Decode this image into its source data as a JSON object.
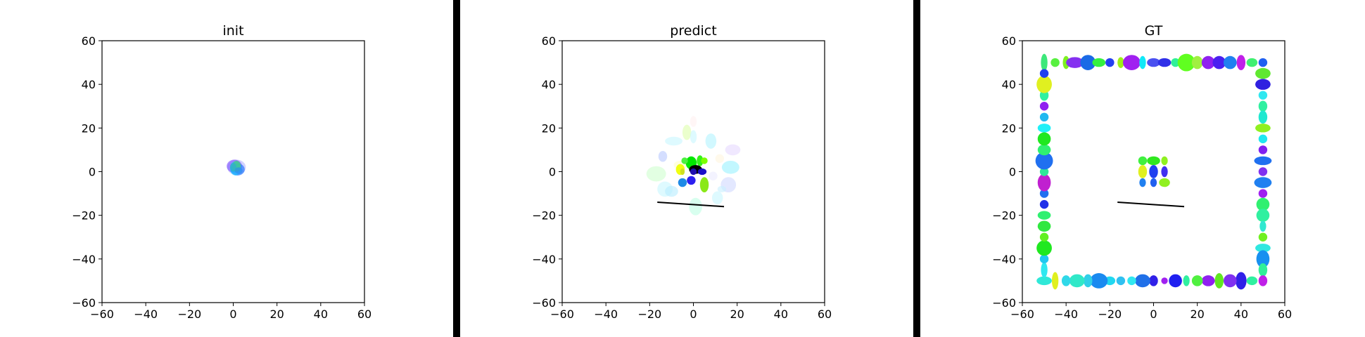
{
  "chart_data": [
    {
      "type": "scatter",
      "title": "init",
      "xlim": [
        -60,
        60
      ],
      "ylim": [
        -60,
        60
      ],
      "xticks": [
        -60,
        -40,
        -20,
        0,
        20,
        40,
        60
      ],
      "yticks": [
        -60,
        -40,
        -20,
        0,
        20,
        40,
        60
      ],
      "xtick_labels": [
        "−60",
        "−40",
        "−20",
        "0",
        "20",
        "40",
        "60"
      ],
      "ytick_labels": [
        "−60",
        "−40",
        "−20",
        "0",
        "20",
        "40",
        "60"
      ],
      "grid": false,
      "ellipses": [
        {
          "x": 1.5,
          "y": 2.0,
          "w": 8.5,
          "h": 7.0,
          "color": "#b4b4ff",
          "alpha": 0.6
        },
        {
          "x": 0.5,
          "y": 2.5,
          "w": 7.0,
          "h": 6.0,
          "color": "#7a4cff",
          "alpha": 0.6
        },
        {
          "x": 2.0,
          "y": 1.0,
          "w": 6.5,
          "h": 5.5,
          "color": "#2a7bff",
          "alpha": 0.7
        },
        {
          "x": 1.0,
          "y": 1.5,
          "w": 5.0,
          "h": 6.5,
          "color": "#12c7ff",
          "alpha": 0.6
        },
        {
          "x": 1.5,
          "y": 2.5,
          "w": 4.0,
          "h": 5.0,
          "color": "#46c987",
          "alpha": 0.8
        },
        {
          "x": 0.0,
          "y": 2.0,
          "w": 3.0,
          "h": 4.0,
          "color": "#2fb0c8",
          "alpha": 0.8
        },
        {
          "x": 2.5,
          "y": 0.5,
          "w": 3.5,
          "h": 3.0,
          "color": "#2d8df0",
          "alpha": 0.7
        }
      ],
      "lines": []
    },
    {
      "type": "scatter",
      "title": "predict",
      "xlim": [
        -60,
        60
      ],
      "ylim": [
        -60,
        60
      ],
      "xticks": [
        -60,
        -40,
        -20,
        0,
        20,
        40,
        60
      ],
      "yticks": [
        -60,
        -40,
        -20,
        0,
        20,
        40,
        60
      ],
      "xtick_labels": [
        "−60",
        "−40",
        "−20",
        "0",
        "20",
        "40",
        "60"
      ],
      "ytick_labels": [
        "−60",
        "−40",
        "−20",
        "0",
        "20",
        "40",
        "60"
      ],
      "grid": false,
      "ellipses": [
        {
          "x": 0,
          "y": 23,
          "w": 3,
          "h": 5,
          "color": "#ffe0e0",
          "alpha": 0.3
        },
        {
          "x": -3,
          "y": 18,
          "w": 4,
          "h": 7,
          "color": "#d8ff9c",
          "alpha": 0.5
        },
        {
          "x": 0,
          "y": 16,
          "w": 3,
          "h": 6,
          "color": "#c8f7ff",
          "alpha": 0.6
        },
        {
          "x": -9,
          "y": 14,
          "w": 8,
          "h": 4,
          "color": "#c8f7ff",
          "alpha": 0.6
        },
        {
          "x": 8,
          "y": 14,
          "w": 5,
          "h": 7,
          "color": "#b2f4ff",
          "alpha": 0.6
        },
        {
          "x": 18,
          "y": 10,
          "w": 7,
          "h": 5,
          "color": "#e6d8ff",
          "alpha": 0.6
        },
        {
          "x": -14,
          "y": 7,
          "w": 4,
          "h": 5,
          "color": "#b8c8ff",
          "alpha": 0.6
        },
        {
          "x": 12,
          "y": 6,
          "w": 4,
          "h": 4,
          "color": "#fff4d8",
          "alpha": 0.5
        },
        {
          "x": 17,
          "y": 2,
          "w": 8,
          "h": 6,
          "color": "#a8f4ff",
          "alpha": 0.7
        },
        {
          "x": -17,
          "y": -1,
          "w": 9,
          "h": 7,
          "color": "#d6ffd6",
          "alpha": 0.7
        },
        {
          "x": -6,
          "y": 3,
          "w": 6,
          "h": 4,
          "color": "#ffffc8",
          "alpha": 0.6
        },
        {
          "x": 9,
          "y": -2,
          "w": 4,
          "h": 4,
          "color": "#e8e8ff",
          "alpha": 0.5
        },
        {
          "x": 16,
          "y": -6,
          "w": 7,
          "h": 7,
          "color": "#d0d8ff",
          "alpha": 0.6
        },
        {
          "x": 13,
          "y": -8,
          "w": 4,
          "h": 3,
          "color": "#c8f0ff",
          "alpha": 0.6
        },
        {
          "x": -13,
          "y": -8,
          "w": 7,
          "h": 7,
          "color": "#c8f7ff",
          "alpha": 0.6
        },
        {
          "x": -10,
          "y": -9,
          "w": 6,
          "h": 5,
          "color": "#b8ecff",
          "alpha": 0.6
        },
        {
          "x": 11,
          "y": -12,
          "w": 5,
          "h": 6,
          "color": "#c8f7ff",
          "alpha": 0.6
        },
        {
          "x": 1,
          "y": -16,
          "w": 6,
          "h": 8,
          "color": "#c8ffe8",
          "alpha": 0.7
        },
        {
          "x": -1,
          "y": 4,
          "w": 5,
          "h": 6,
          "color": "#00e800",
          "alpha": 1.0
        },
        {
          "x": 3,
          "y": 5,
          "w": 3,
          "h": 5,
          "color": "#35f21a",
          "alpha": 1.0
        },
        {
          "x": 5,
          "y": 5,
          "w": 3,
          "h": 3,
          "color": "#7bff00",
          "alpha": 1.0
        },
        {
          "x": -4,
          "y": 5,
          "w": 3,
          "h": 3,
          "color": "#4cf040",
          "alpha": 1.0
        },
        {
          "x": -6,
          "y": 1,
          "w": 4,
          "h": 5,
          "color": "#f0ff10",
          "alpha": 1.0
        },
        {
          "x": -5,
          "y": 0,
          "w": 2,
          "h": 3,
          "color": "#d0e020",
          "alpha": 1.0
        },
        {
          "x": 1,
          "y": 1,
          "w": 6,
          "h": 4,
          "color": "#000000",
          "alpha": 1.0
        },
        {
          "x": 4,
          "y": 0,
          "w": 4,
          "h": 3,
          "color": "#1a10c8",
          "alpha": 1.0
        },
        {
          "x": 0,
          "y": 0,
          "w": 3,
          "h": 3,
          "color": "#2010b0",
          "alpha": 1.0
        },
        {
          "x": -5,
          "y": -5,
          "w": 4,
          "h": 4,
          "color": "#1e8ae6",
          "alpha": 1.0
        },
        {
          "x": -1,
          "y": -4,
          "w": 4,
          "h": 4,
          "color": "#2c20f0",
          "alpha": 1.0
        },
        {
          "x": 5,
          "y": -6,
          "w": 4,
          "h": 7,
          "color": "#8ae818",
          "alpha": 1.0
        }
      ],
      "lines": [
        {
          "x": [
            -16.5,
            14
          ],
          "y": [
            -14,
            -16
          ]
        }
      ]
    },
    {
      "type": "scatter",
      "title": "GT",
      "xlim": [
        -60,
        60
      ],
      "ylim": [
        -60,
        60
      ],
      "xticks": [
        -60,
        -40,
        -20,
        0,
        20,
        40,
        60
      ],
      "yticks": [
        -60,
        -40,
        -20,
        0,
        20,
        40,
        60
      ],
      "xtick_labels": [
        "−60",
        "−40",
        "−20",
        "0",
        "20",
        "40",
        "60"
      ],
      "ytick_labels": [
        "−60",
        "−40",
        "−20",
        "0",
        "20",
        "40",
        "60"
      ],
      "grid": false,
      "ellipses": [
        {
          "x": -50,
          "y": 50,
          "w": 3,
          "h": 8,
          "color": "#3de87a"
        },
        {
          "x": -45,
          "y": 50,
          "w": 4,
          "h": 4,
          "color": "#58f040"
        },
        {
          "x": -40,
          "y": 50,
          "w": 3,
          "h": 6,
          "color": "#7ef020"
        },
        {
          "x": -36,
          "y": 50,
          "w": 8,
          "h": 5,
          "color": "#8530f0"
        },
        {
          "x": -30,
          "y": 50,
          "w": 7,
          "h": 7,
          "color": "#1a6ae6"
        },
        {
          "x": -25,
          "y": 50,
          "w": 6,
          "h": 4,
          "color": "#35f040"
        },
        {
          "x": -20,
          "y": 50,
          "w": 4,
          "h": 4,
          "color": "#2440f0"
        },
        {
          "x": -15,
          "y": 50,
          "w": 3,
          "h": 5,
          "color": "#9ef018"
        },
        {
          "x": -10,
          "y": 50,
          "w": 8,
          "h": 7,
          "color": "#a020f0"
        },
        {
          "x": -5,
          "y": 50,
          "w": 3,
          "h": 6,
          "color": "#10e8f8"
        },
        {
          "x": 0,
          "y": 50,
          "w": 6,
          "h": 4,
          "color": "#4a50f0"
        },
        {
          "x": 5,
          "y": 50,
          "w": 6,
          "h": 4,
          "color": "#3030e8"
        },
        {
          "x": 10,
          "y": 50,
          "w": 4,
          "h": 4,
          "color": "#30f098"
        },
        {
          "x": 15,
          "y": 50,
          "w": 8,
          "h": 8,
          "color": "#60ff20"
        },
        {
          "x": 20,
          "y": 50,
          "w": 5,
          "h": 6,
          "color": "#a0f040"
        },
        {
          "x": 25,
          "y": 50,
          "w": 6,
          "h": 6,
          "color": "#9020f0"
        },
        {
          "x": 30,
          "y": 50,
          "w": 6,
          "h": 6,
          "color": "#4a20f0"
        },
        {
          "x": 35,
          "y": 50,
          "w": 6,
          "h": 6,
          "color": "#2080f0"
        },
        {
          "x": 40,
          "y": 50,
          "w": 4,
          "h": 7,
          "color": "#c020e8"
        },
        {
          "x": 45,
          "y": 50,
          "w": 5,
          "h": 4,
          "color": "#40f070"
        },
        {
          "x": 50,
          "y": 50,
          "w": 4,
          "h": 4,
          "color": "#2060f0"
        },
        {
          "x": 50,
          "y": 45,
          "w": 7,
          "h": 5,
          "color": "#60e830"
        },
        {
          "x": 50,
          "y": 40,
          "w": 7,
          "h": 5,
          "color": "#3020e0"
        },
        {
          "x": 50,
          "y": 35,
          "w": 4,
          "h": 4,
          "color": "#30e8f0"
        },
        {
          "x": 50,
          "y": 30,
          "w": 4,
          "h": 5,
          "color": "#30f0a0"
        },
        {
          "x": 50,
          "y": 25,
          "w": 4,
          "h": 6,
          "color": "#20e8d0"
        },
        {
          "x": 50,
          "y": 20,
          "w": 7,
          "h": 4,
          "color": "#90f020"
        },
        {
          "x": 50,
          "y": 15,
          "w": 4,
          "h": 4,
          "color": "#20e8f0"
        },
        {
          "x": 50,
          "y": 10,
          "w": 4,
          "h": 4,
          "color": "#8020f0"
        },
        {
          "x": 50,
          "y": 5,
          "w": 8,
          "h": 4,
          "color": "#2070f0"
        },
        {
          "x": 50,
          "y": 0,
          "w": 4,
          "h": 4,
          "color": "#8030f0"
        },
        {
          "x": 50,
          "y": -5,
          "w": 8,
          "h": 5,
          "color": "#2080f0"
        },
        {
          "x": 50,
          "y": -10,
          "w": 4,
          "h": 4,
          "color": "#a020f0"
        },
        {
          "x": 50,
          "y": -15,
          "w": 6,
          "h": 6,
          "color": "#30f070"
        },
        {
          "x": 50,
          "y": -20,
          "w": 6,
          "h": 6,
          "color": "#30f0a0"
        },
        {
          "x": 50,
          "y": -25,
          "w": 3,
          "h": 5,
          "color": "#30e8d0"
        },
        {
          "x": 50,
          "y": -30,
          "w": 4,
          "h": 4,
          "color": "#70f020"
        },
        {
          "x": 50,
          "y": -35,
          "w": 7,
          "h": 4,
          "color": "#30e8e0"
        },
        {
          "x": 50,
          "y": -40,
          "w": 6,
          "h": 8,
          "color": "#1890f0"
        },
        {
          "x": 50,
          "y": -45,
          "w": 4,
          "h": 6,
          "color": "#30f098"
        },
        {
          "x": 50,
          "y": -50,
          "w": 4,
          "h": 5,
          "color": "#c020e8"
        },
        {
          "x": 45,
          "y": -50,
          "w": 5,
          "h": 4,
          "color": "#30f0a0"
        },
        {
          "x": 40,
          "y": -50,
          "w": 5,
          "h": 8,
          "color": "#3020e8"
        },
        {
          "x": 35,
          "y": -50,
          "w": 6,
          "h": 6,
          "color": "#8030f0"
        },
        {
          "x": 30,
          "y": -50,
          "w": 4,
          "h": 7,
          "color": "#60e820"
        },
        {
          "x": 25,
          "y": -50,
          "w": 6,
          "h": 5,
          "color": "#9020f0"
        },
        {
          "x": 20,
          "y": -50,
          "w": 5,
          "h": 5,
          "color": "#50f040"
        },
        {
          "x": 15,
          "y": -50,
          "w": 3,
          "h": 5,
          "color": "#30f0a0"
        },
        {
          "x": 10,
          "y": -50,
          "w": 6,
          "h": 6,
          "color": "#2020f0"
        },
        {
          "x": 5,
          "y": -50,
          "w": 3,
          "h": 3,
          "color": "#a020f0"
        },
        {
          "x": 0,
          "y": -50,
          "w": 4,
          "h": 5,
          "color": "#3020e8"
        },
        {
          "x": -5,
          "y": -50,
          "w": 7,
          "h": 6,
          "color": "#2070e8"
        },
        {
          "x": -10,
          "y": -50,
          "w": 4,
          "h": 4,
          "color": "#30e8f0"
        },
        {
          "x": -15,
          "y": -50,
          "w": 4,
          "h": 4,
          "color": "#30c0f0"
        },
        {
          "x": -20,
          "y": -50,
          "w": 5,
          "h": 4,
          "color": "#20d8f0"
        },
        {
          "x": -25,
          "y": -50,
          "w": 8,
          "h": 7,
          "color": "#1a8af0"
        },
        {
          "x": -30,
          "y": -50,
          "w": 4,
          "h": 6,
          "color": "#30d0e8"
        },
        {
          "x": -35,
          "y": -50,
          "w": 7,
          "h": 6,
          "color": "#30e8c8"
        },
        {
          "x": -40,
          "y": -50,
          "w": 4,
          "h": 5,
          "color": "#30d8e8"
        },
        {
          "x": -45,
          "y": -50,
          "w": 3,
          "h": 8,
          "color": "#e0f020"
        },
        {
          "x": -50,
          "y": -50,
          "w": 7,
          "h": 4,
          "color": "#30e8d8"
        },
        {
          "x": -50,
          "y": -45,
          "w": 3,
          "h": 7,
          "color": "#30e8f0"
        },
        {
          "x": -50,
          "y": -40,
          "w": 4,
          "h": 4,
          "color": "#20c8f0"
        },
        {
          "x": -50,
          "y": -35,
          "w": 7,
          "h": 7,
          "color": "#20e820"
        },
        {
          "x": -50,
          "y": -30,
          "w": 4,
          "h": 4,
          "color": "#60f020"
        },
        {
          "x": -50,
          "y": -25,
          "w": 6,
          "h": 5,
          "color": "#30e840"
        },
        {
          "x": -50,
          "y": -20,
          "w": 6,
          "h": 4,
          "color": "#30f070"
        },
        {
          "x": -50,
          "y": -15,
          "w": 4,
          "h": 4,
          "color": "#2030e8"
        },
        {
          "x": -50,
          "y": -10,
          "w": 4,
          "h": 4,
          "color": "#2070f0"
        },
        {
          "x": -50,
          "y": -5,
          "w": 6,
          "h": 8,
          "color": "#c020d0"
        },
        {
          "x": -50,
          "y": 0,
          "w": 4,
          "h": 4,
          "color": "#30e898"
        },
        {
          "x": -50,
          "y": 5,
          "w": 8,
          "h": 8,
          "color": "#2070f0"
        },
        {
          "x": -50,
          "y": 10,
          "w": 6,
          "h": 5,
          "color": "#30f070"
        },
        {
          "x": -50,
          "y": 15,
          "w": 6,
          "h": 6,
          "color": "#20e820"
        },
        {
          "x": -50,
          "y": 20,
          "w": 6,
          "h": 4,
          "color": "#20f0f8"
        },
        {
          "x": -50,
          "y": 25,
          "w": 4,
          "h": 4,
          "color": "#20b8f0"
        },
        {
          "x": -50,
          "y": 30,
          "w": 4,
          "h": 4,
          "color": "#9020f0"
        },
        {
          "x": -50,
          "y": 35,
          "w": 4,
          "h": 5,
          "color": "#30f0a0"
        },
        {
          "x": -50,
          "y": 40,
          "w": 7,
          "h": 8,
          "color": "#e0f020"
        },
        {
          "x": -50,
          "y": 45,
          "w": 4,
          "h": 4,
          "color": "#2040f0"
        },
        {
          "x": -5,
          "y": 5,
          "w": 4,
          "h": 4,
          "color": "#40f040"
        },
        {
          "x": 0,
          "y": 5,
          "w": 6,
          "h": 4,
          "color": "#30e820"
        },
        {
          "x": 5,
          "y": 5,
          "w": 3,
          "h": 4,
          "color": "#90f020"
        },
        {
          "x": -5,
          "y": 0,
          "w": 4,
          "h": 6,
          "color": "#e0f020"
        },
        {
          "x": 0,
          "y": 0,
          "w": 4,
          "h": 6,
          "color": "#2040f0"
        },
        {
          "x": 5,
          "y": 0,
          "w": 3,
          "h": 5,
          "color": "#4030f0"
        },
        {
          "x": -5,
          "y": -5,
          "w": 3,
          "h": 4,
          "color": "#2080f0"
        },
        {
          "x": 0,
          "y": -5,
          "w": 3,
          "h": 4,
          "color": "#2060f0"
        },
        {
          "x": 5,
          "y": -5,
          "w": 5,
          "h": 4,
          "color": "#90f020"
        }
      ],
      "lines": [
        {
          "x": [
            -16.5,
            14
          ],
          "y": [
            -14,
            -16
          ]
        }
      ]
    }
  ],
  "separator_color": "#000000"
}
